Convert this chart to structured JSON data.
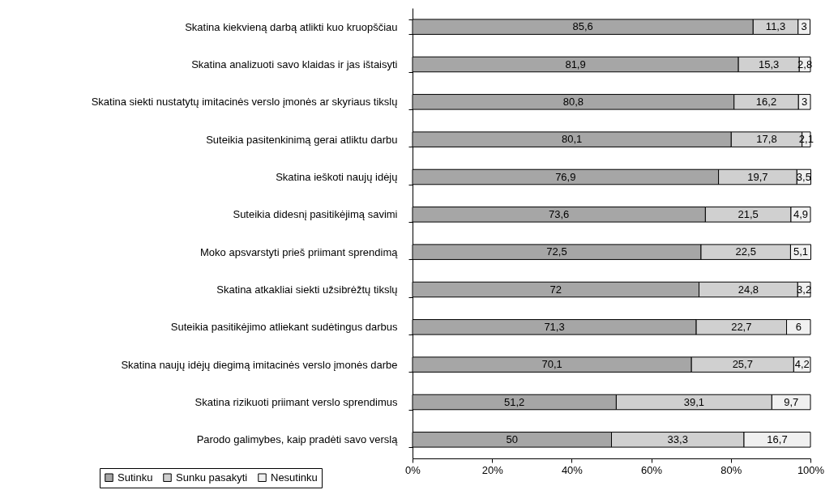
{
  "chart_data": {
    "type": "bar",
    "orientation": "horizontal",
    "stacked": true,
    "categories": [
      "Skatina kiekvieną darbą atlikti kuo kruopščiau",
      "Skatina analizuoti savo klaidas ir jas ištaisyti",
      "Skatina siekti nustatytų imitacinės verslo įmonės ar skyriaus tikslų",
      "Suteikia pasitenkinimą gerai atliktu darbu",
      "Skatina ieškoti naujų idėjų",
      "Suteikia didesnį pasitikėjimą savimi",
      "Moko apsvarstyti prieš priimant sprendimą",
      "Skatina atkakliai siekti užsibrėžtų tikslų",
      "Suteikia pasitikėjimo atliekant sudėtingus darbus",
      "Skatina naujų idėjų diegimą imitacinės verslo įmonės darbe",
      "Skatina rizikuoti priimant verslo sprendimus",
      "Parodo galimybes, kaip pradėti savo verslą"
    ],
    "series": [
      {
        "name": "Sutinku",
        "color": "#a6a6a6",
        "values": [
          85.6,
          81.9,
          80.8,
          80.1,
          76.9,
          73.6,
          72.5,
          72,
          71.3,
          70.1,
          51.2,
          50
        ],
        "value_labels": [
          "85,6",
          "81,9",
          "80,8",
          "80,1",
          "76,9",
          "73,6",
          "72,5",
          "72",
          "71,3",
          "70,1",
          "51,2",
          "50"
        ]
      },
      {
        "name": "Sunku pasakyti",
        "color": "#d0d0d0",
        "values": [
          11.3,
          15.3,
          16.2,
          17.8,
          19.7,
          21.5,
          22.5,
          24.8,
          22.7,
          25.7,
          39.1,
          33.3
        ],
        "value_labels": [
          "11,3",
          "15,3",
          "16,2",
          "17,8",
          "19,7",
          "21,5",
          "22,5",
          "24,8",
          "22,7",
          "25,7",
          "39,1",
          "33,3"
        ]
      },
      {
        "name": "Nesutinku",
        "color": "#f0f0f0",
        "values": [
          3,
          2.8,
          3,
          2.1,
          3.5,
          4.9,
          5.1,
          3.2,
          6,
          4.2,
          9.7,
          16.7
        ],
        "value_labels": [
          "3",
          "2,8",
          "3",
          "2,1",
          "3,5",
          "4,9",
          "5,1",
          "3,2",
          "6",
          "4,2",
          "9,7",
          "16,7"
        ]
      }
    ],
    "xlim": [
      0,
      100
    ],
    "xticks": [
      {
        "value": 0,
        "label": "0%"
      },
      {
        "value": 20,
        "label": "20%"
      },
      {
        "value": 40,
        "label": "40%"
      },
      {
        "value": 60,
        "label": "60%"
      },
      {
        "value": 80,
        "label": "80%"
      },
      {
        "value": 100,
        "label": "100%"
      }
    ],
    "legend": "bottom left"
  }
}
